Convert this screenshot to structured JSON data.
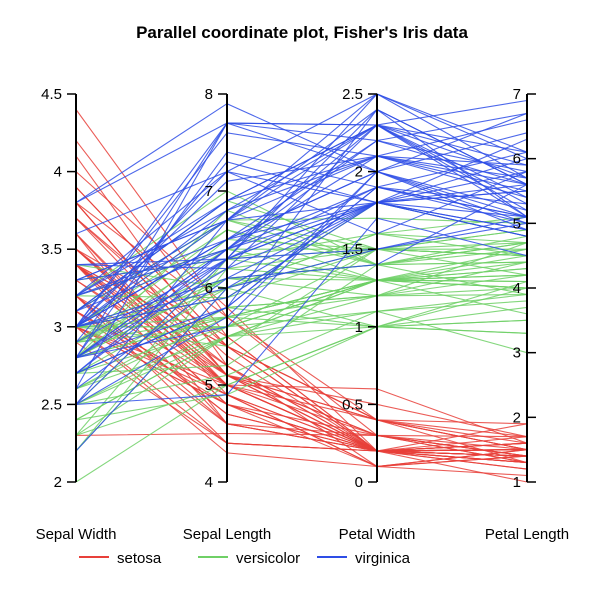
{
  "chart_data": {
    "type": "parallel-coordinates",
    "title": "Parallel coordinate plot, Fisher's Iris data",
    "axes": [
      {
        "name": "Sepal Width",
        "range": [
          2,
          4.5
        ],
        "ticks": [
          "2",
          "2.5",
          "3",
          "3.5",
          "4",
          "4.5"
        ]
      },
      {
        "name": "Sepal Length",
        "range": [
          4,
          8
        ],
        "ticks": [
          "4",
          "5",
          "6",
          "7",
          "8"
        ]
      },
      {
        "name": "Petal Width",
        "range": [
          0,
          2.5
        ],
        "ticks": [
          "0",
          "0.5",
          "1",
          "1.5",
          "2",
          "2.5"
        ]
      },
      {
        "name": "Petal Length",
        "range": [
          1,
          7
        ],
        "ticks": [
          "1",
          "2",
          "3",
          "4",
          "5",
          "6",
          "7"
        ]
      }
    ],
    "legend": {
      "position": "bottom",
      "entries": [
        "setosa",
        "versicolor",
        "virginica"
      ]
    },
    "colors": {
      "setosa": "#e8403a",
      "versicolor": "#6fd066",
      "virginica": "#2e4de6"
    },
    "series": [
      {
        "name": "setosa",
        "rows": [
          [
            3.5,
            5.1,
            0.2,
            1.4
          ],
          [
            3.0,
            4.9,
            0.2,
            1.4
          ],
          [
            3.2,
            4.7,
            0.2,
            1.3
          ],
          [
            3.1,
            4.6,
            0.2,
            1.5
          ],
          [
            3.6,
            5.0,
            0.2,
            1.4
          ],
          [
            3.9,
            5.4,
            0.4,
            1.7
          ],
          [
            3.4,
            4.6,
            0.3,
            1.4
          ],
          [
            3.4,
            5.0,
            0.2,
            1.5
          ],
          [
            2.9,
            4.4,
            0.2,
            1.4
          ],
          [
            3.1,
            4.9,
            0.1,
            1.5
          ],
          [
            3.7,
            5.4,
            0.2,
            1.5
          ],
          [
            3.4,
            4.8,
            0.2,
            1.6
          ],
          [
            3.0,
            4.8,
            0.1,
            1.4
          ],
          [
            3.0,
            4.3,
            0.1,
            1.1
          ],
          [
            4.0,
            5.8,
            0.2,
            1.2
          ],
          [
            4.4,
            5.7,
            0.4,
            1.5
          ],
          [
            3.9,
            5.4,
            0.4,
            1.3
          ],
          [
            3.5,
            5.1,
            0.3,
            1.4
          ],
          [
            3.8,
            5.7,
            0.3,
            1.7
          ],
          [
            3.8,
            5.1,
            0.3,
            1.5
          ],
          [
            3.4,
            5.4,
            0.2,
            1.7
          ],
          [
            3.7,
            5.1,
            0.4,
            1.5
          ],
          [
            3.6,
            4.6,
            0.2,
            1.0
          ],
          [
            3.3,
            5.1,
            0.5,
            1.7
          ],
          [
            3.4,
            4.8,
            0.2,
            1.9
          ],
          [
            3.0,
            5.0,
            0.2,
            1.6
          ],
          [
            3.4,
            5.0,
            0.4,
            1.6
          ],
          [
            3.5,
            5.2,
            0.2,
            1.5
          ],
          [
            3.4,
            5.2,
            0.2,
            1.4
          ],
          [
            3.2,
            4.7,
            0.2,
            1.6
          ],
          [
            3.1,
            4.8,
            0.2,
            1.6
          ],
          [
            3.4,
            5.4,
            0.4,
            1.5
          ],
          [
            4.1,
            5.2,
            0.1,
            1.5
          ],
          [
            4.2,
            5.5,
            0.2,
            1.4
          ],
          [
            3.1,
            4.9,
            0.2,
            1.5
          ],
          [
            3.2,
            5.0,
            0.2,
            1.2
          ],
          [
            3.5,
            5.5,
            0.2,
            1.3
          ],
          [
            3.6,
            4.9,
            0.1,
            1.4
          ],
          [
            3.0,
            4.4,
            0.2,
            1.3
          ],
          [
            3.4,
            5.1,
            0.2,
            1.5
          ],
          [
            3.5,
            5.0,
            0.3,
            1.3
          ],
          [
            2.3,
            4.5,
            0.3,
            1.3
          ],
          [
            3.2,
            4.4,
            0.2,
            1.3
          ],
          [
            3.5,
            5.0,
            0.6,
            1.6
          ],
          [
            3.8,
            5.1,
            0.4,
            1.9
          ],
          [
            3.0,
            4.8,
            0.3,
            1.4
          ],
          [
            3.8,
            5.1,
            0.2,
            1.6
          ],
          [
            3.2,
            4.6,
            0.2,
            1.4
          ],
          [
            3.7,
            5.3,
            0.2,
            1.5
          ],
          [
            3.3,
            5.0,
            0.2,
            1.4
          ]
        ]
      },
      {
        "name": "versicolor",
        "rows": [
          [
            3.2,
            7.0,
            1.4,
            4.7
          ],
          [
            3.2,
            6.4,
            1.5,
            4.5
          ],
          [
            3.1,
            6.9,
            1.5,
            4.9
          ],
          [
            2.3,
            5.5,
            1.3,
            4.0
          ],
          [
            2.8,
            6.5,
            1.5,
            4.6
          ],
          [
            2.8,
            5.7,
            1.3,
            4.5
          ],
          [
            3.3,
            6.3,
            1.6,
            4.7
          ],
          [
            2.4,
            4.9,
            1.0,
            3.3
          ],
          [
            2.9,
            6.6,
            1.3,
            4.6
          ],
          [
            2.7,
            5.2,
            1.4,
            3.9
          ],
          [
            2.0,
            5.0,
            1.0,
            3.5
          ],
          [
            3.0,
            5.9,
            1.5,
            4.2
          ],
          [
            2.2,
            6.0,
            1.0,
            4.0
          ],
          [
            2.9,
            6.1,
            1.4,
            4.7
          ],
          [
            2.9,
            5.6,
            1.3,
            3.6
          ],
          [
            3.1,
            6.7,
            1.4,
            4.4
          ],
          [
            3.0,
            5.6,
            1.5,
            4.5
          ],
          [
            2.7,
            5.8,
            1.0,
            4.1
          ],
          [
            2.2,
            6.2,
            1.5,
            4.5
          ],
          [
            2.5,
            5.6,
            1.1,
            3.9
          ],
          [
            3.2,
            5.9,
            1.8,
            4.8
          ],
          [
            2.8,
            6.1,
            1.3,
            4.0
          ],
          [
            2.5,
            6.3,
            1.5,
            4.9
          ],
          [
            2.8,
            6.1,
            1.2,
            4.7
          ],
          [
            2.9,
            6.4,
            1.3,
            4.3
          ],
          [
            3.0,
            6.6,
            1.4,
            4.4
          ],
          [
            2.8,
            6.8,
            1.4,
            4.8
          ],
          [
            3.0,
            6.7,
            1.7,
            5.0
          ],
          [
            2.9,
            6.0,
            1.5,
            4.5
          ],
          [
            2.6,
            5.7,
            1.0,
            3.5
          ],
          [
            2.4,
            5.5,
            1.1,
            3.8
          ],
          [
            2.4,
            5.5,
            1.0,
            3.7
          ],
          [
            2.7,
            5.8,
            1.2,
            3.9
          ],
          [
            2.7,
            6.0,
            1.6,
            5.1
          ],
          [
            3.0,
            5.4,
            1.5,
            4.5
          ],
          [
            3.4,
            6.0,
            1.6,
            4.5
          ],
          [
            3.1,
            6.7,
            1.5,
            4.7
          ],
          [
            2.3,
            6.3,
            1.3,
            4.4
          ],
          [
            3.0,
            5.6,
            1.3,
            4.1
          ],
          [
            2.5,
            5.5,
            1.3,
            4.0
          ],
          [
            2.6,
            5.5,
            1.2,
            4.4
          ],
          [
            3.0,
            6.1,
            1.4,
            4.6
          ],
          [
            2.6,
            5.8,
            1.2,
            4.0
          ],
          [
            2.3,
            5.0,
            1.0,
            3.3
          ],
          [
            2.7,
            5.6,
            1.3,
            4.2
          ],
          [
            3.0,
            5.7,
            1.2,
            4.2
          ],
          [
            2.9,
            5.7,
            1.3,
            4.2
          ],
          [
            2.9,
            6.2,
            1.3,
            4.3
          ],
          [
            2.5,
            5.1,
            1.1,
            3.0
          ],
          [
            2.8,
            5.7,
            1.3,
            4.1
          ]
        ]
      },
      {
        "name": "virginica",
        "rows": [
          [
            3.3,
            6.3,
            2.5,
            6.0
          ],
          [
            2.7,
            5.8,
            1.9,
            5.1
          ],
          [
            3.0,
            7.1,
            2.1,
            5.9
          ],
          [
            2.9,
            6.3,
            1.8,
            5.6
          ],
          [
            3.0,
            6.5,
            2.2,
            5.8
          ],
          [
            3.0,
            7.6,
            2.1,
            6.6
          ],
          [
            2.5,
            4.9,
            1.7,
            4.5
          ],
          [
            2.9,
            7.3,
            1.8,
            6.3
          ],
          [
            2.5,
            6.7,
            1.8,
            5.8
          ],
          [
            3.6,
            7.2,
            2.5,
            6.1
          ],
          [
            3.2,
            6.5,
            2.0,
            5.1
          ],
          [
            2.7,
            6.4,
            1.9,
            5.3
          ],
          [
            3.0,
            6.8,
            2.1,
            5.5
          ],
          [
            2.5,
            5.7,
            2.0,
            5.0
          ],
          [
            2.8,
            5.8,
            2.4,
            5.1
          ],
          [
            3.2,
            6.4,
            2.3,
            5.3
          ],
          [
            3.0,
            6.5,
            1.8,
            5.5
          ],
          [
            3.8,
            7.7,
            2.2,
            6.7
          ],
          [
            2.6,
            7.7,
            2.3,
            6.9
          ],
          [
            2.2,
            6.0,
            1.5,
            5.0
          ],
          [
            3.2,
            6.9,
            2.3,
            5.7
          ],
          [
            2.8,
            5.6,
            2.0,
            4.9
          ],
          [
            2.8,
            7.7,
            2.0,
            6.7
          ],
          [
            2.7,
            6.3,
            1.8,
            4.9
          ],
          [
            3.3,
            6.7,
            2.1,
            5.7
          ],
          [
            3.2,
            7.2,
            1.8,
            6.0
          ],
          [
            2.8,
            6.2,
            1.8,
            4.8
          ],
          [
            3.0,
            6.1,
            1.8,
            4.9
          ],
          [
            2.8,
            6.4,
            2.1,
            5.6
          ],
          [
            3.0,
            7.2,
            1.6,
            5.8
          ],
          [
            2.8,
            7.4,
            1.9,
            6.1
          ],
          [
            3.8,
            7.9,
            2.0,
            6.4
          ],
          [
            2.8,
            6.4,
            2.2,
            5.6
          ],
          [
            2.8,
            6.3,
            1.5,
            5.1
          ],
          [
            2.6,
            6.1,
            1.4,
            5.6
          ],
          [
            3.0,
            7.7,
            2.3,
            6.1
          ],
          [
            3.4,
            6.3,
            2.4,
            5.6
          ],
          [
            3.1,
            6.4,
            1.8,
            5.5
          ],
          [
            3.0,
            6.0,
            1.8,
            4.8
          ],
          [
            3.1,
            6.9,
            2.1,
            5.4
          ],
          [
            3.1,
            6.7,
            2.4,
            5.6
          ],
          [
            3.1,
            6.9,
            2.3,
            5.1
          ],
          [
            2.7,
            5.8,
            1.9,
            5.1
          ],
          [
            3.2,
            6.8,
            2.3,
            5.9
          ],
          [
            3.3,
            6.7,
            2.5,
            5.7
          ],
          [
            3.0,
            6.7,
            2.3,
            5.2
          ],
          [
            2.5,
            6.3,
            1.9,
            5.0
          ],
          [
            3.0,
            6.5,
            2.0,
            5.2
          ],
          [
            3.4,
            6.2,
            2.3,
            5.4
          ],
          [
            3.0,
            5.9,
            1.8,
            5.1
          ]
        ]
      }
    ]
  }
}
